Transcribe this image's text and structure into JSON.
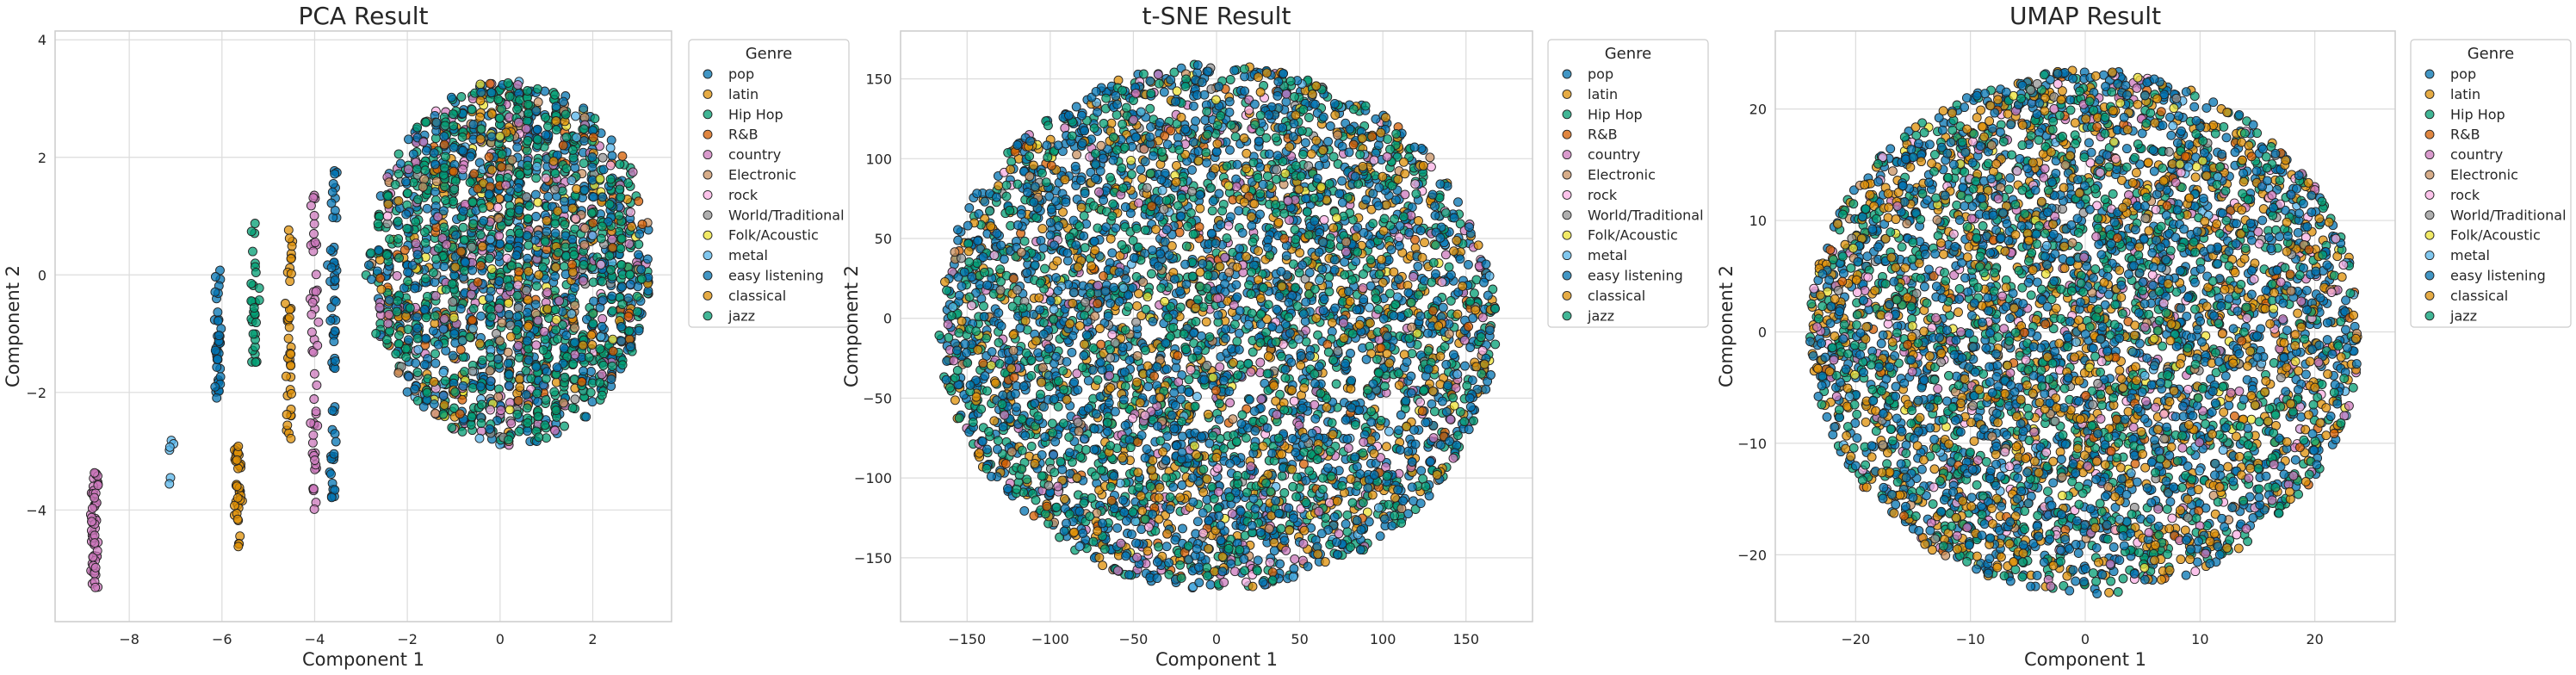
{
  "genres": [
    "pop",
    "latin",
    "Hip Hop",
    "R&B",
    "country",
    "Electronic",
    "rock",
    "World/Traditional",
    "Folk/Acoustic",
    "metal",
    "easy listening",
    "classical",
    "jazz"
  ],
  "genre_colors": [
    "#0173b2",
    "#de8f05",
    "#029e73",
    "#d55e00",
    "#cc78bc",
    "#ca9161",
    "#fbafe4",
    "#949494",
    "#ece133",
    "#56b4e9",
    "#0173b2",
    "#de8f05",
    "#029e73"
  ],
  "legend_title": "Genre",
  "chart_data": [
    {
      "type": "scatter",
      "title": "PCA Result",
      "xlabel": "Component 1",
      "ylabel": "Component 2",
      "xlim": [
        -9.6,
        3.7
      ],
      "ylim": [
        -5.9,
        4.15
      ],
      "xticks": [
        -8,
        -6,
        -4,
        -2,
        0,
        2
      ],
      "yticks": [
        -4,
        -2,
        0,
        2,
        4
      ],
      "grid": true,
      "legend": "outside-top-right",
      "clusters": [
        {
          "kind": "cloud",
          "cx": 0.2,
          "cy": 0.2,
          "rx": 3.0,
          "ry": 3.1,
          "n": 2200,
          "weights": [
            4,
            1,
            5,
            1,
            2,
            0.5,
            0.5,
            0.5,
            0.5,
            0.5,
            2,
            0.5,
            3
          ]
        },
        {
          "kind": "column",
          "x": -8.75,
          "y0": -5.35,
          "y1": -3.35,
          "n": 60,
          "genre": 4
        },
        {
          "kind": "column",
          "x": -7.1,
          "y0": -3.6,
          "y1": -2.65,
          "n": 6,
          "genre": 9
        },
        {
          "kind": "column",
          "x": -6.1,
          "y0": -2.1,
          "y1": 0.2,
          "n": 40,
          "genre": 10
        },
        {
          "kind": "column",
          "x": -5.65,
          "y0": -4.7,
          "y1": -2.9,
          "n": 40,
          "genre": 11
        },
        {
          "kind": "column",
          "x": -5.3,
          "y0": -1.5,
          "y1": 0.9,
          "n": 30,
          "genre": 12
        },
        {
          "kind": "column",
          "x": -4.55,
          "y0": -2.8,
          "y1": 0.8,
          "n": 40,
          "genre": 11
        },
        {
          "kind": "column",
          "x": -4.0,
          "y0": -4.0,
          "y1": 1.5,
          "n": 50,
          "genre": 4
        },
        {
          "kind": "column",
          "x": -3.6,
          "y0": -3.8,
          "y1": 1.8,
          "n": 60,
          "genre": 0
        }
      ]
    },
    {
      "type": "scatter",
      "title": "t-SNE Result",
      "xlabel": "Component 1",
      "ylabel": "Component 2",
      "xlim": [
        -190,
        190
      ],
      "ylim": [
        -190,
        180
      ],
      "xticks": [
        -150,
        -100,
        -50,
        0,
        50,
        100,
        150
      ],
      "yticks": [
        -150,
        -100,
        -50,
        0,
        50,
        100,
        150
      ],
      "grid": true,
      "legend": "outside-top-right",
      "clusters": [
        {
          "kind": "disc",
          "cx": 0,
          "cy": -5,
          "r": 168,
          "n": 4500,
          "weights": [
            6,
            2,
            4,
            0.5,
            1,
            0.3,
            0.3,
            0.3,
            0.3,
            0.3,
            3,
            1.5,
            2
          ]
        }
      ]
    },
    {
      "type": "scatter",
      "title": "UMAP Result",
      "xlabel": "Component 1",
      "ylabel": "Component 2",
      "xlim": [
        -27,
        27
      ],
      "ylim": [
        -26,
        27
      ],
      "xticks": [
        -20,
        -10,
        0,
        10,
        20
      ],
      "yticks": [
        -20,
        -10,
        0,
        10,
        20
      ],
      "grid": true,
      "legend": "outside-top-right",
      "clusters": [
        {
          "kind": "disc",
          "cx": 0,
          "cy": 0,
          "r": 24,
          "n": 4500,
          "weights": [
            6,
            3,
            4,
            0.5,
            1,
            0.3,
            0.8,
            0.3,
            0.3,
            0.3,
            3,
            2,
            2
          ]
        }
      ]
    }
  ]
}
